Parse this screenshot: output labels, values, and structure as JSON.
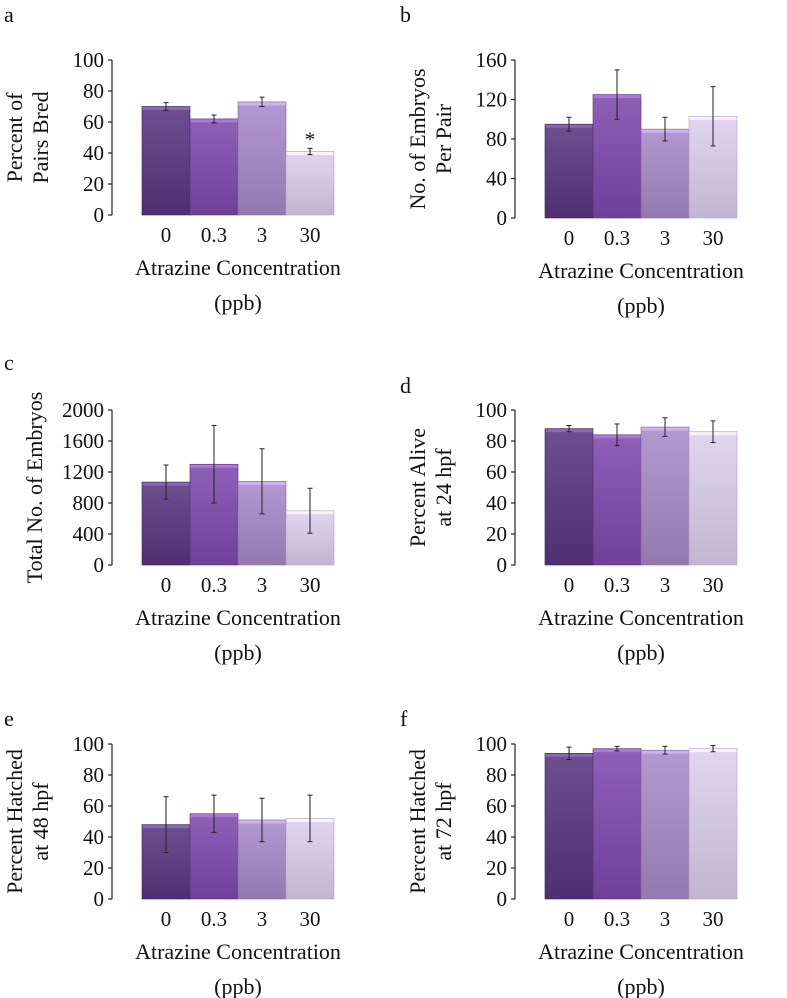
{
  "colors": {
    "bar_0": "#5d3c80",
    "bar_0.3": "#7d4ea5",
    "bar_3": "#a287bf",
    "bar_30": "#cfc3df"
  },
  "chart_data": [
    {
      "panel": "a",
      "type": "bar",
      "categories": [
        "0",
        "0.3",
        "3",
        "30"
      ],
      "values": [
        70,
        62,
        73,
        41
      ],
      "errors": [
        2.5,
        2.5,
        3,
        2
      ],
      "annotations": [
        {
          "category": "30",
          "text": "*"
        }
      ],
      "ylabel_lines": [
        "Percent of",
        "Pairs Bred"
      ],
      "xlabel_lines": [
        "Atrazine Concentration",
        "(ppb)"
      ],
      "ylim": [
        0,
        100
      ],
      "yticks": [
        0,
        20,
        40,
        60,
        80,
        100
      ],
      "grid": false
    },
    {
      "panel": "b",
      "type": "bar",
      "categories": [
        "0",
        "0.3",
        "3",
        "30"
      ],
      "values": [
        95,
        125,
        90,
        103
      ],
      "errors": [
        7,
        25,
        12,
        30
      ],
      "annotations": [],
      "ylabel_lines": [
        "No. of Embryos",
        "Per Pair"
      ],
      "xlabel_lines": [
        "Atrazine Concentration",
        "(ppb)"
      ],
      "ylim": [
        0,
        160
      ],
      "yticks": [
        0,
        40,
        80,
        120,
        160
      ],
      "grid": false
    },
    {
      "panel": "c",
      "type": "bar",
      "categories": [
        "0",
        "0.3",
        "3",
        "30"
      ],
      "values": [
        1070,
        1300,
        1080,
        700
      ],
      "errors": [
        220,
        500,
        420,
        290
      ],
      "annotations": [],
      "ylabel_lines": [
        "Total No. of Embryos"
      ],
      "xlabel_lines": [
        "Atrazine Concentration",
        "(ppb)"
      ],
      "ylim": [
        0,
        2000
      ],
      "yticks": [
        0,
        400,
        800,
        1200,
        1600,
        2000
      ],
      "grid": false
    },
    {
      "panel": "d",
      "type": "bar",
      "categories": [
        "0",
        "0.3",
        "3",
        "30"
      ],
      "values": [
        88,
        84,
        89,
        86
      ],
      "errors": [
        2,
        7,
        6,
        7
      ],
      "annotations": [],
      "ylabel_lines": [
        "Percent Alive",
        "at 24 hpf"
      ],
      "xlabel_lines": [
        "Atrazine Concentration",
        "(ppb)"
      ],
      "ylim": [
        0,
        100
      ],
      "yticks": [
        0,
        20,
        40,
        60,
        80,
        100
      ],
      "grid": false
    },
    {
      "panel": "e",
      "type": "bar",
      "categories": [
        "0",
        "0.3",
        "3",
        "30"
      ],
      "values": [
        48,
        55,
        51,
        52
      ],
      "errors": [
        18,
        12,
        14,
        15
      ],
      "annotations": [],
      "ylabel_lines": [
        "Percent Hatched",
        "at 48 hpf"
      ],
      "xlabel_lines": [
        "Atrazine Concentration",
        "(ppb)"
      ],
      "ylim": [
        0,
        100
      ],
      "yticks": [
        0,
        20,
        40,
        60,
        80,
        100
      ],
      "grid": false
    },
    {
      "panel": "f",
      "type": "bar",
      "categories": [
        "0",
        "0.3",
        "3",
        "30"
      ],
      "values": [
        94,
        97,
        96,
        97
      ],
      "errors": [
        4,
        1.5,
        2.5,
        2
      ],
      "annotations": [],
      "ylabel_lines": [
        "Percent Hatched",
        "at 72 hpf"
      ],
      "xlabel_lines": [
        "Atrazine Concentration",
        "(ppb)"
      ],
      "ylim": [
        0,
        100
      ],
      "yticks": [
        0,
        20,
        40,
        60,
        80,
        100
      ],
      "grid": false
    }
  ]
}
